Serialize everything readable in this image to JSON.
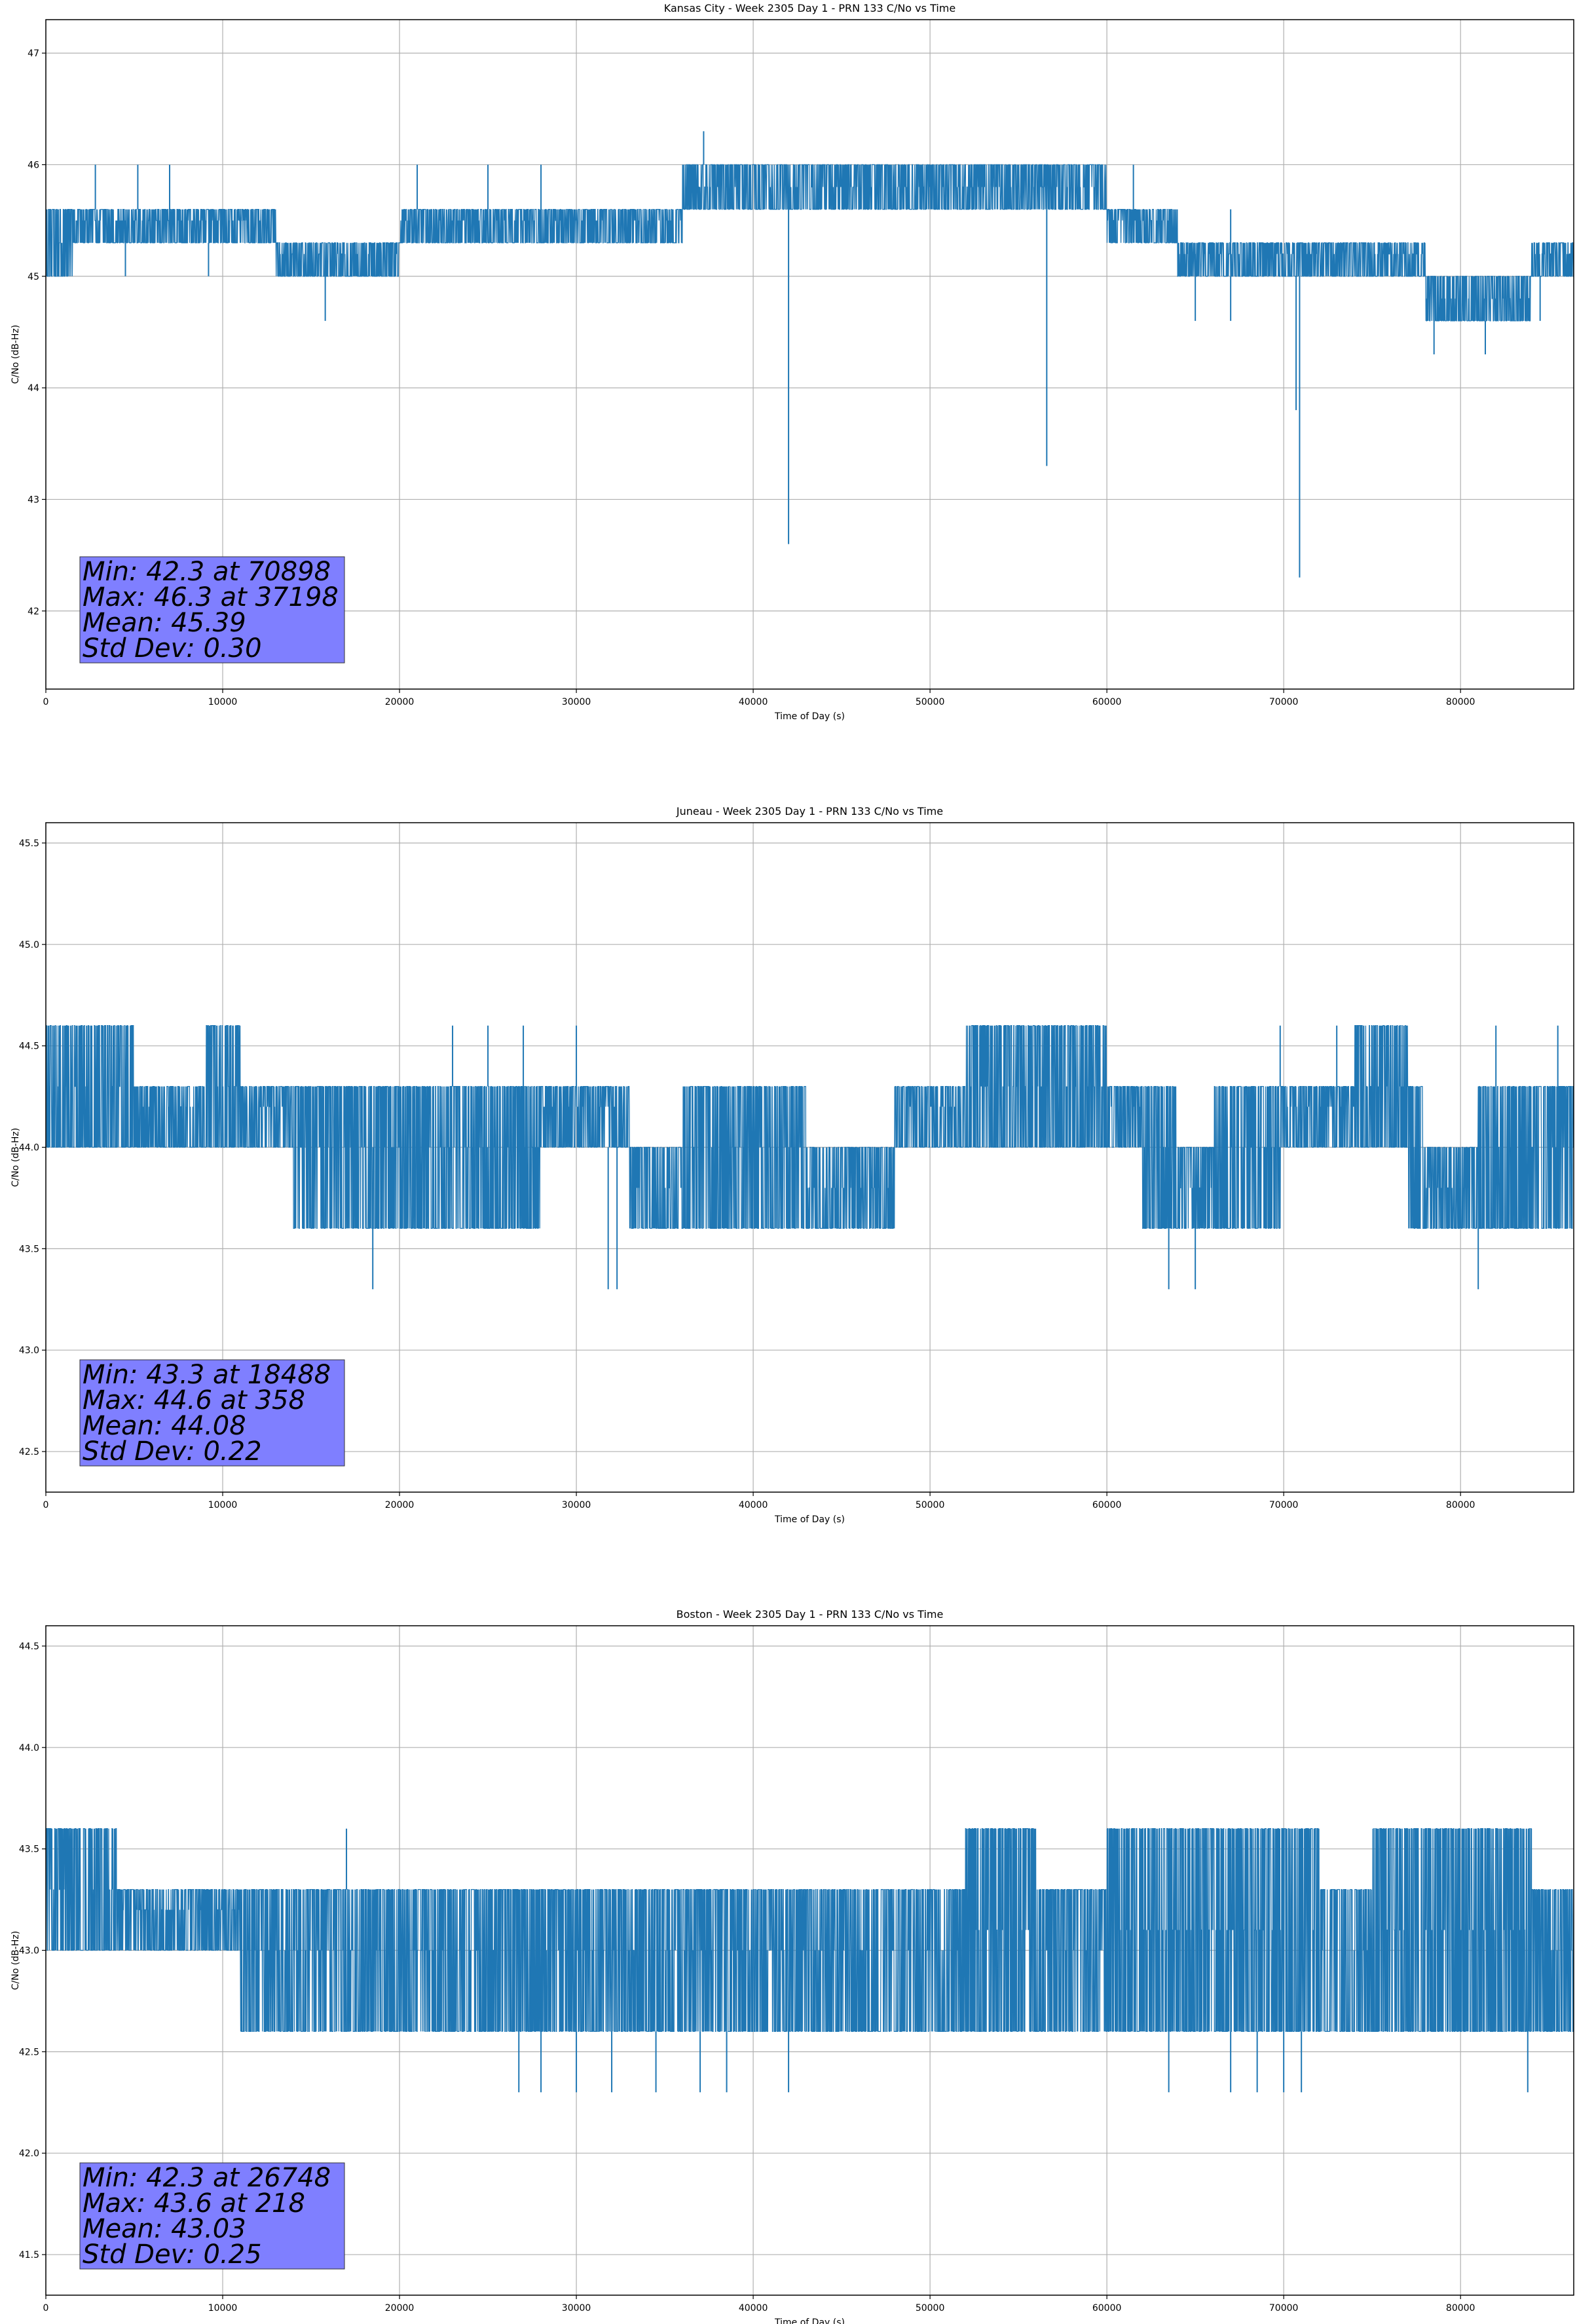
{
  "chart_data": [
    {
      "type": "line",
      "title": "Kansas City - Week 2305 Day 1 - PRN 133 C/No vs Time",
      "xlabel": "Time of Day (s)",
      "ylabel": "C/No (dB-Hz)",
      "xlim": [
        0,
        86400
      ],
      "ylim": [
        41.3,
        47.3
      ],
      "xticks": [
        0,
        10000,
        20000,
        30000,
        40000,
        50000,
        60000,
        70000,
        80000
      ],
      "yticks": [
        42,
        43,
        44,
        45,
        46,
        47
      ],
      "ytick_labels": [
        "42",
        "43",
        "44",
        "45",
        "46",
        "47"
      ],
      "grid": true,
      "color": "#1f77b4",
      "stats": [
        "Min: 42.3 at 70898",
        "Max: 46.3 at 37198",
        "Mean: 45.39",
        "Std Dev: 0.30"
      ],
      "series": [
        {
          "x": [
            0,
            1500,
            3000,
            6000,
            10000,
            13000,
            15000,
            17000,
            20000,
            22000,
            25000,
            28000,
            30000,
            33000,
            36000,
            38000,
            40000,
            42000,
            45000,
            48000,
            50000,
            53000,
            56000,
            58000,
            60000,
            62000,
            64000,
            66000,
            69000,
            72000,
            74000,
            76000,
            78000,
            80000,
            82000,
            84000,
            86000
          ],
          "lo": [
            45.0,
            45.3,
            45.3,
            45.3,
            45.3,
            45.0,
            45.0,
            45.0,
            45.3,
            45.3,
            45.3,
            45.3,
            45.3,
            45.3,
            45.6,
            45.6,
            45.6,
            45.6,
            45.6,
            45.6,
            45.6,
            45.6,
            45.6,
            45.6,
            45.3,
            45.3,
            45.0,
            45.0,
            45.0,
            45.0,
            45.0,
            45.0,
            44.6,
            44.6,
            44.6,
            45.0,
            45.0
          ],
          "hi": [
            45.6,
            45.6,
            45.6,
            45.6,
            45.6,
            45.3,
            45.3,
            45.3,
            45.6,
            45.6,
            45.6,
            45.6,
            45.6,
            45.6,
            46.0,
            46.0,
            46.0,
            46.0,
            46.0,
            46.0,
            46.0,
            46.0,
            46.0,
            46.0,
            45.6,
            45.6,
            45.3,
            45.3,
            45.3,
            45.3,
            45.3,
            45.3,
            45.0,
            45.0,
            45.0,
            45.3,
            45.3
          ]
        }
      ],
      "spikes": [
        {
          "x": 37198,
          "y": 46.3
        },
        {
          "x": 42000,
          "y": 42.6
        },
        {
          "x": 56600,
          "y": 43.3
        },
        {
          "x": 70898,
          "y": 42.3
        },
        {
          "x": 70700,
          "y": 43.8
        },
        {
          "x": 15800,
          "y": 44.6
        },
        {
          "x": 78500,
          "y": 44.3
        },
        {
          "x": 81400,
          "y": 44.3
        },
        {
          "x": 4500,
          "y": 45.0
        },
        {
          "x": 9200,
          "y": 45.0
        },
        {
          "x": 65000,
          "y": 44.6
        },
        {
          "x": 67000,
          "y": 44.6
        },
        {
          "x": 5200,
          "y": 46.0
        },
        {
          "x": 7000,
          "y": 46.0
        },
        {
          "x": 2800,
          "y": 46.0
        },
        {
          "x": 21000,
          "y": 46.0
        },
        {
          "x": 25000,
          "y": 46.0
        },
        {
          "x": 28000,
          "y": 46.0
        },
        {
          "x": 61500,
          "y": 46.0
        },
        {
          "x": 67000,
          "y": 45.6
        },
        {
          "x": 84500,
          "y": 44.6
        }
      ]
    },
    {
      "type": "line",
      "title": "Juneau - Week 2305 Day 1 - PRN 133 C/No vs Time",
      "xlabel": "Time of Day (s)",
      "ylabel": "C/No (dB-Hz)",
      "xlim": [
        0,
        86400
      ],
      "ylim": [
        42.3,
        45.6
      ],
      "xticks": [
        0,
        10000,
        20000,
        30000,
        40000,
        50000,
        60000,
        70000,
        80000
      ],
      "yticks": [
        42.5,
        43.0,
        43.5,
        44.0,
        44.5,
        45.0,
        45.5
      ],
      "ytick_labels": [
        "42.5",
        "43.0",
        "43.5",
        "44.0",
        "44.5",
        "45.0",
        "45.5"
      ],
      "grid": true,
      "color": "#1f77b4",
      "stats": [
        "Min: 43.3 at 18488",
        "Max: 44.6 at 358",
        "Mean: 44.08",
        "Std Dev: 0.22"
      ],
      "series": [
        {
          "x": [
            0,
            2000,
            5000,
            9000,
            11000,
            14000,
            17000,
            20000,
            24000,
            28000,
            31000,
            33000,
            36000,
            40000,
            43000,
            46000,
            48000,
            52000,
            56000,
            60000,
            62000,
            64000,
            66000,
            70000,
            74000,
            77000,
            78000,
            81000,
            84000,
            86000
          ],
          "lo": [
            44.0,
            44.0,
            44.0,
            44.0,
            44.0,
            43.6,
            43.6,
            43.6,
            43.6,
            44.0,
            44.0,
            43.6,
            43.6,
            43.6,
            43.6,
            43.6,
            44.0,
            44.0,
            44.0,
            44.0,
            43.6,
            43.6,
            43.6,
            44.0,
            44.0,
            43.6,
            43.6,
            43.6,
            43.6,
            43.6
          ],
          "hi": [
            44.6,
            44.6,
            44.3,
            44.6,
            44.3,
            44.3,
            44.3,
            44.3,
            44.3,
            44.3,
            44.3,
            44.0,
            44.3,
            44.3,
            44.0,
            44.0,
            44.3,
            44.6,
            44.6,
            44.3,
            44.3,
            44.0,
            44.3,
            44.3,
            44.6,
            44.3,
            44.0,
            44.3,
            44.3,
            44.3
          ]
        }
      ],
      "spikes": [
        {
          "x": 18488,
          "y": 43.3
        },
        {
          "x": 31800,
          "y": 43.3
        },
        {
          "x": 32300,
          "y": 43.3
        },
        {
          "x": 63500,
          "y": 43.3
        },
        {
          "x": 65000,
          "y": 43.3
        },
        {
          "x": 81000,
          "y": 43.3
        },
        {
          "x": 23000,
          "y": 44.6
        },
        {
          "x": 25000,
          "y": 44.6
        },
        {
          "x": 27000,
          "y": 44.6
        },
        {
          "x": 30000,
          "y": 44.6
        },
        {
          "x": 69800,
          "y": 44.6
        },
        {
          "x": 73000,
          "y": 44.6
        },
        {
          "x": 82000,
          "y": 44.6
        },
        {
          "x": 85500,
          "y": 44.6
        }
      ]
    },
    {
      "type": "line",
      "title": "Boston - Week 2305 Day 1 - PRN 133 C/No vs Time",
      "xlabel": "Time of Day (s)",
      "ylabel": "C/No (dB-Hz)",
      "xlim": [
        0,
        86400
      ],
      "ylim": [
        41.3,
        44.6
      ],
      "xticks": [
        0,
        10000,
        20000,
        30000,
        40000,
        50000,
        60000,
        70000,
        80000
      ],
      "yticks": [
        41.5,
        42.0,
        42.5,
        43.0,
        43.5,
        44.0,
        44.5
      ],
      "ytick_labels": [
        "41.5",
        "42.0",
        "42.5",
        "43.0",
        "43.5",
        "44.0",
        "44.5"
      ],
      "grid": true,
      "color": "#1f77b4",
      "stats": [
        "Min: 42.3 at 26748",
        "Max: 43.6 at 218",
        "Mean: 43.03",
        "Std Dev: 0.25"
      ],
      "series": [
        {
          "x": [
            0,
            4000,
            8000,
            11000,
            15000,
            19000,
            23000,
            26000,
            28000,
            31000,
            35000,
            39000,
            43000,
            46000,
            48000,
            52000,
            56000,
            60000,
            63000,
            66000,
            69000,
            72000,
            75000,
            79000,
            82000,
            84000,
            86000
          ],
          "lo": [
            43.0,
            43.0,
            43.0,
            42.6,
            42.6,
            42.6,
            42.6,
            42.6,
            42.6,
            42.6,
            42.6,
            42.6,
            42.6,
            42.6,
            42.6,
            42.6,
            42.6,
            42.6,
            42.6,
            42.6,
            42.6,
            42.6,
            42.6,
            42.6,
            42.6,
            42.6,
            42.6
          ],
          "hi": [
            43.6,
            43.3,
            43.3,
            43.3,
            43.3,
            43.3,
            43.3,
            43.3,
            43.3,
            43.3,
            43.3,
            43.3,
            43.3,
            43.3,
            43.3,
            43.6,
            43.3,
            43.6,
            43.6,
            43.6,
            43.6,
            43.3,
            43.6,
            43.6,
            43.6,
            43.3,
            43.3
          ]
        }
      ],
      "spikes": [
        {
          "x": 26748,
          "y": 42.3
        },
        {
          "x": 28000,
          "y": 42.3
        },
        {
          "x": 30000,
          "y": 42.3
        },
        {
          "x": 32000,
          "y": 42.3
        },
        {
          "x": 34500,
          "y": 42.3
        },
        {
          "x": 37000,
          "y": 42.3
        },
        {
          "x": 38500,
          "y": 42.3
        },
        {
          "x": 42000,
          "y": 42.3
        },
        {
          "x": 63500,
          "y": 42.3
        },
        {
          "x": 67000,
          "y": 42.3
        },
        {
          "x": 68500,
          "y": 42.3
        },
        {
          "x": 70000,
          "y": 42.3
        },
        {
          "x": 71000,
          "y": 42.3
        },
        {
          "x": 83800,
          "y": 42.3
        },
        {
          "x": 17000,
          "y": 43.6
        },
        {
          "x": 84000,
          "y": 43.6
        }
      ]
    }
  ]
}
